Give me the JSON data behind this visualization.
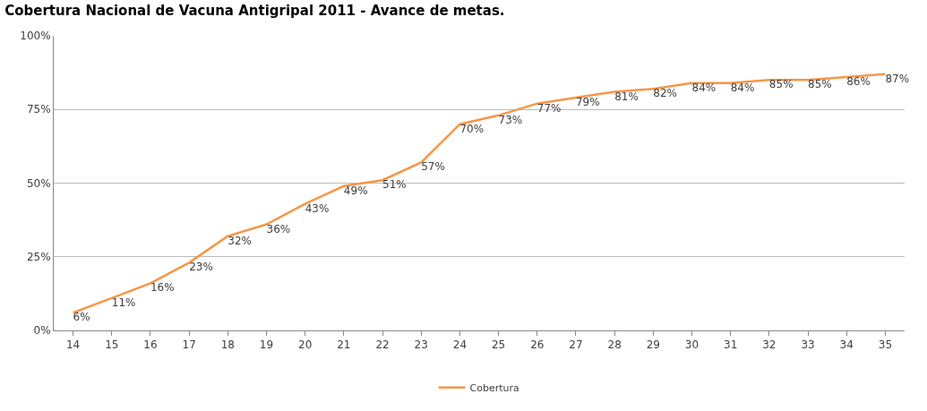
{
  "chart_data": {
    "type": "line",
    "title": "Cobertura Nacional de Vacuna Antigripal 2011 - Avance de metas.",
    "categories": [
      "14",
      "15",
      "16",
      "17",
      "18",
      "19",
      "20",
      "21",
      "22",
      "23",
      "24",
      "25",
      "26",
      "27",
      "28",
      "29",
      "30",
      "31",
      "32",
      "33",
      "34",
      "35"
    ],
    "series": [
      {
        "name": "Cobertura",
        "color": "#f79646",
        "values": [
          6,
          11,
          16,
          23,
          32,
          36,
          43,
          49,
          51,
          57,
          70,
          73,
          77,
          79,
          81,
          82,
          84,
          84,
          85,
          85,
          86,
          87
        ],
        "value_labels": [
          "6%",
          "11%",
          "16%",
          "23%",
          "32%",
          "36%",
          "43%",
          "49%",
          "51%",
          "57%",
          "70%",
          "73%",
          "77%",
          "79%",
          "81%",
          "82%",
          "84%",
          "84%",
          "85%",
          "85%",
          "86%",
          "87%"
        ]
      }
    ],
    "ylim": [
      0,
      100
    ],
    "yticks": [
      {
        "value": 0,
        "label": "0%"
      },
      {
        "value": 25,
        "label": "25%"
      },
      {
        "value": 50,
        "label": "50%"
      },
      {
        "value": 75,
        "label": "75%"
      },
      {
        "value": 100,
        "label": "100%"
      }
    ],
    "grid": "y",
    "legend": "bottom",
    "marker": "none",
    "line_style": "solid"
  }
}
